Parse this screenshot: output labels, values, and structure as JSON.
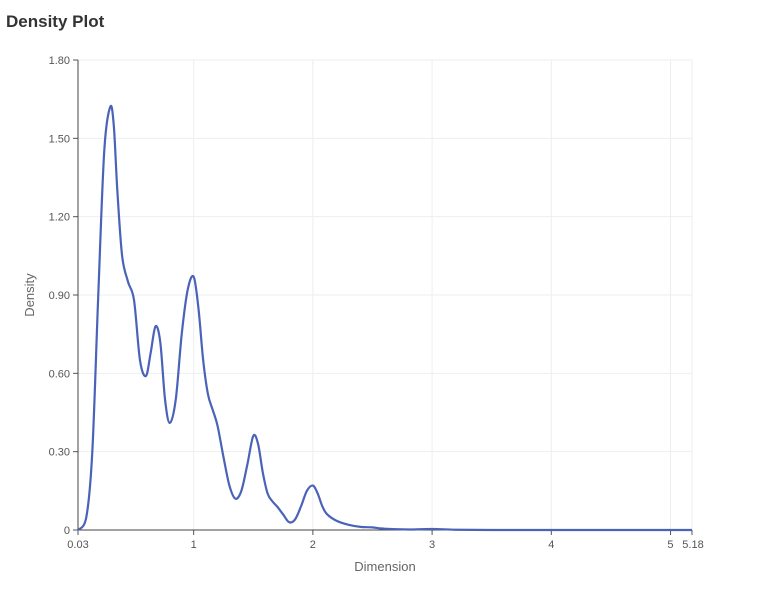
{
  "title": "Density Plot",
  "chart_data": {
    "type": "line",
    "title": "Density Plot",
    "xlabel": "Dimension",
    "ylabel": "Density",
    "xlim": [
      0.03,
      5.18
    ],
    "ylim": [
      0,
      1.8
    ],
    "x_ticks": [
      0.03,
      1,
      2,
      3,
      4,
      5,
      5.18
    ],
    "x_tick_labels": [
      "0.03",
      "1",
      "2",
      "3",
      "4",
      "5",
      "5.18"
    ],
    "y_ticks": [
      0,
      0.3,
      0.6,
      0.9,
      1.2,
      1.5,
      1.8
    ],
    "y_tick_labels": [
      "0",
      "0.30",
      "0.60",
      "0.90",
      "1.20",
      "1.50",
      "1.80"
    ],
    "grid": true,
    "line_color": "#4a63b8",
    "series": [
      {
        "x": [
          0.03,
          0.1,
          0.15,
          0.2,
          0.25,
          0.3,
          0.33,
          0.36,
          0.4,
          0.45,
          0.5,
          0.55,
          0.6,
          0.64,
          0.68,
          0.72,
          0.76,
          0.8,
          0.85,
          0.9,
          0.95,
          1.0,
          1.04,
          1.08,
          1.12,
          1.16,
          1.2,
          1.25,
          1.3,
          1.35,
          1.4,
          1.45,
          1.5,
          1.54,
          1.58,
          1.62,
          1.66,
          1.7,
          1.75,
          1.8,
          1.85,
          1.9,
          1.95,
          2.0,
          2.04,
          2.08,
          2.12,
          2.2,
          2.3,
          2.4,
          2.5,
          2.6,
          2.8,
          3.0,
          3.2,
          3.5,
          4.0,
          4.5,
          5.0,
          5.18
        ],
        "y": [
          0.0,
          0.05,
          0.3,
          0.9,
          1.45,
          1.62,
          1.55,
          1.3,
          1.05,
          0.95,
          0.88,
          0.65,
          0.59,
          0.68,
          0.78,
          0.72,
          0.5,
          0.41,
          0.5,
          0.75,
          0.92,
          0.97,
          0.85,
          0.65,
          0.52,
          0.46,
          0.4,
          0.28,
          0.17,
          0.12,
          0.15,
          0.25,
          0.36,
          0.33,
          0.22,
          0.14,
          0.11,
          0.09,
          0.06,
          0.03,
          0.04,
          0.09,
          0.15,
          0.17,
          0.14,
          0.09,
          0.06,
          0.035,
          0.02,
          0.012,
          0.01,
          0.005,
          0.002,
          0.004,
          0.001,
          0.0,
          0.0,
          0.0,
          0.0,
          0.0
        ]
      }
    ]
  }
}
